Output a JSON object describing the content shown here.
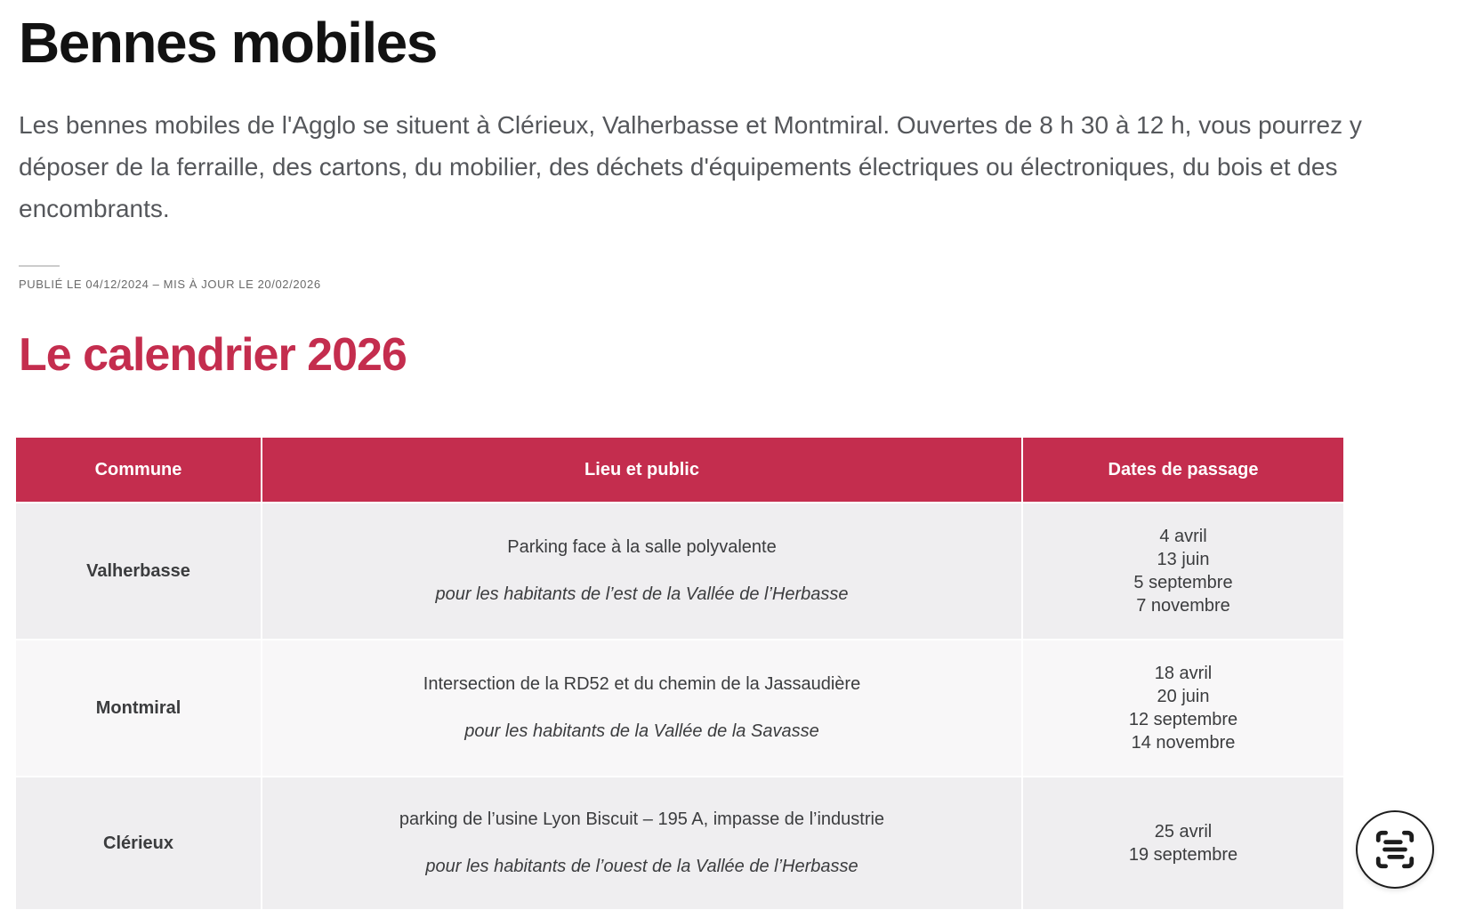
{
  "page": {
    "title": "Bennes mobiles",
    "intro": "Les bennes mobiles de l'Agglo se situent à Clérieux, Valherbasse et Montmiral. Ouvertes de 8 h 30 à 12 h, vous pourrez y déposer de la ferraille, des cartons, du mobilier, des déchets d'équipements électriques ou électroniques, du bois et des encombrants.",
    "published_line": "Publié le 04/12/2024 – Mis à jour le 20/02/2026",
    "section_title": "Le calendrier 2026"
  },
  "table": {
    "headers": [
      "Commune",
      "Lieu et public",
      "Dates de passage"
    ],
    "rows": [
      {
        "commune": "Valherbasse",
        "lieu": "Parking face à la salle polyvalente",
        "public": "pour les habitants de l’est de la Vallée de l’Herbasse",
        "dates": [
          "4 avril",
          "13 juin",
          "5 septembre",
          "7 novembre"
        ]
      },
      {
        "commune": "Montmiral",
        "lieu": "Intersection de la RD52 et du chemin de la Jassaudière",
        "public": "pour les habitants de la Vallée de la Savasse",
        "dates": [
          "18 avril",
          "20 juin",
          "12 septembre",
          "14 novembre"
        ]
      },
      {
        "commune": "Clérieux",
        "lieu": "parking de l’usine Lyon Biscuit – 195 A, impasse de l’industrie",
        "public": "pour les habitants de l’ouest de la Vallée de l’Herbasse",
        "dates": [
          "25 avril",
          "19 septembre"
        ]
      }
    ]
  },
  "scan_button": {
    "icon": "scan-text-icon"
  },
  "colors": {
    "accent": "#c42d4e",
    "row_bg_odd": "#efeef0",
    "row_bg_even": "#f8f7f8",
    "body_text": "#55575b",
    "cell_text": "#3b3c3e",
    "title_text": "#121212",
    "meta_text": "#6a6a6a",
    "icon_ink": "#1d1d1d"
  }
}
